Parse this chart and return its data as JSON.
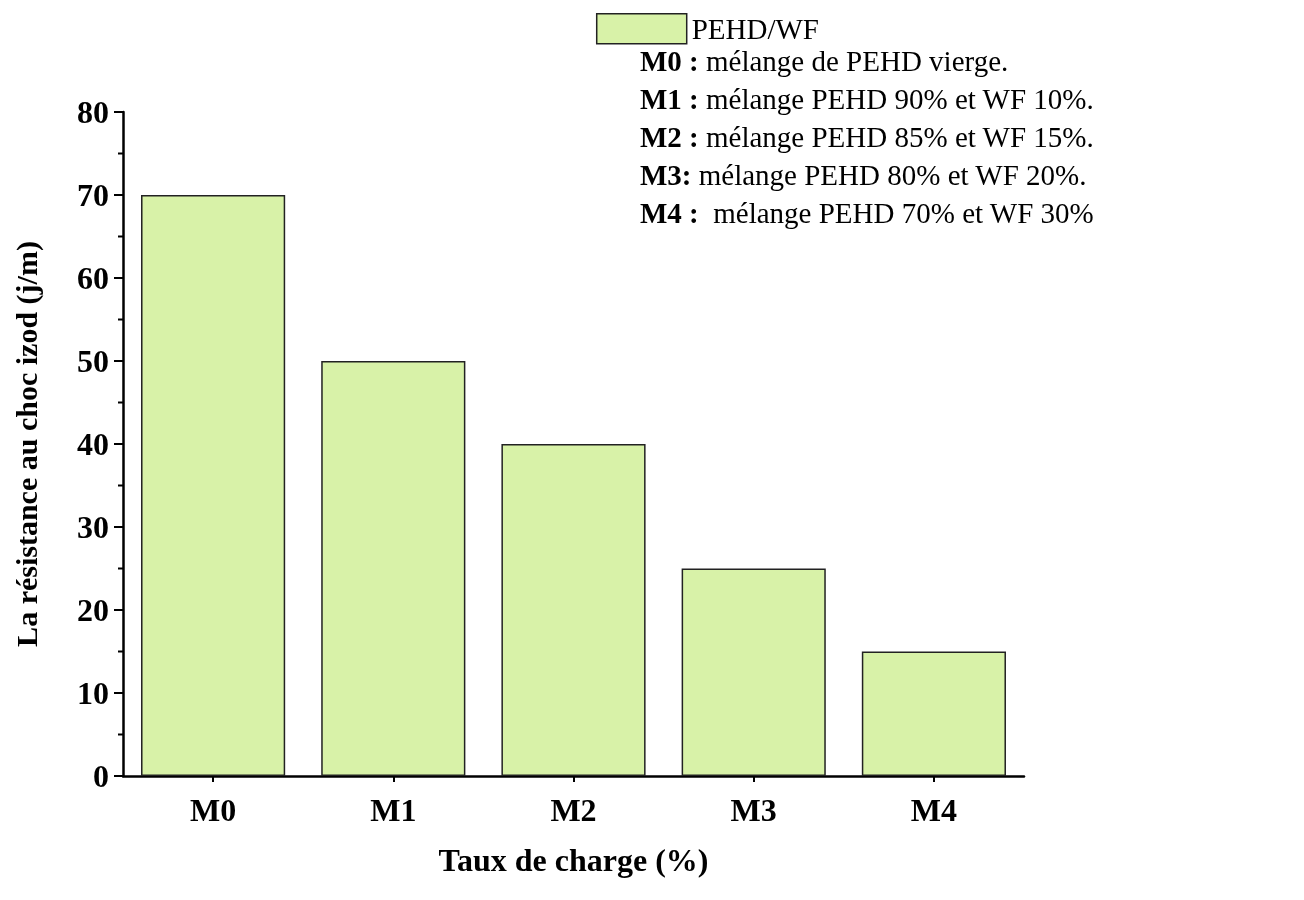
{
  "chart_data": {
    "type": "bar",
    "categories": [
      "M0",
      "M1",
      "M2",
      "M3",
      "M4"
    ],
    "series": [
      {
        "name": "PEHD/WF",
        "color": "#d8f2a8",
        "values": [
          70,
          50,
          40,
          25,
          15
        ]
      }
    ],
    "xlabel": "Taux de charge (%)",
    "ylabel": "La résistance au choc izod (j/m)",
    "ylim": [
      0,
      80
    ],
    "yticks": [
      0,
      10,
      20,
      30,
      40,
      50,
      60,
      70,
      80
    ],
    "grid": false,
    "legend": "top right",
    "annotations": [
      "M0 : mélange de PEHD vierge.",
      "M1 : mélange PEHD 90% et WF 10%.",
      "M2 : mélange PEHD 85% et WF 15%.",
      "M3: mélange PEHD 80% et WF 20%.",
      "M4 :  mélange PEHD 70% et WF 30%"
    ]
  }
}
